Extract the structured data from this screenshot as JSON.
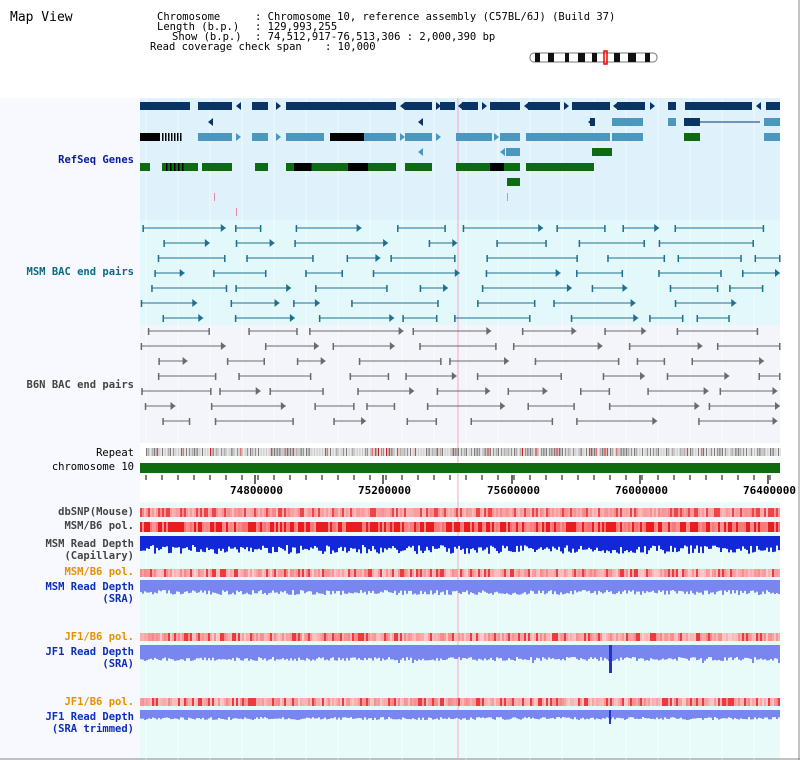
{
  "window": {
    "title": "Map View"
  },
  "header": {
    "chromosome_label": "Chromosome",
    "chromosome_value": ": Chromosome 10, reference assembly (C57BL/6J) (Build 37)",
    "length_label": "Length (b.p.)",
    "length_value": ": 129,993,255",
    "show_label": "Show (b.p.)",
    "show_value": ": 74,512,917-76,513,306 : 2,000,390 bp",
    "coverage_label": "Read coverage check span",
    "coverage_value": ": 10,000"
  },
  "tracks": {
    "refseq": "RefSeq Genes",
    "msm_bac": "MSM BAC end pairs",
    "b6n_bac": "B6N BAC end pairs",
    "repeat": "Repeat",
    "chromosome": "chromosome 10",
    "dbsnp": "dbSNP(Mouse)",
    "msm_b6_pol_1": "MSM/B6 pol.",
    "msm_read_depth_cap_1": "MSM Read Depth",
    "msm_read_depth_cap_2": "(Capillary)",
    "msm_b6_pol_2": "MSM/B6 pol.",
    "msm_read_depth_sra_1": "MSM Read Depth",
    "msm_read_depth_sra_2": "(SRA)",
    "jf1_b6_pol_1": "JF1/B6 pol.",
    "jf1_read_depth_sra_1": "JF1 Read Depth",
    "jf1_read_depth_sra_2": "(SRA)",
    "jf1_b6_pol_2": "JF1/B6 pol.",
    "jf1_read_depth_trim_1": "JF1 Read Depth",
    "jf1_read_depth_trim_2": "(SRA trimmed)"
  },
  "axis": {
    "ticks": [
      "74800000",
      "75200000",
      "75600000",
      "76000000",
      "76400000"
    ]
  },
  "colors": {
    "refseq_bg": "#dff2fb",
    "msm_bg": "#e3f8fb",
    "b6n_bg": "#f4f5fb",
    "lower_bg": "#e8fbf9",
    "navy": "#0b3466",
    "teal_blue": "#4c97bd",
    "green": "#0f6b12",
    "chromosome": "#0f6b0f",
    "depth_blue": "#1228d8",
    "depth_purple": "#7a86ef"
  }
}
